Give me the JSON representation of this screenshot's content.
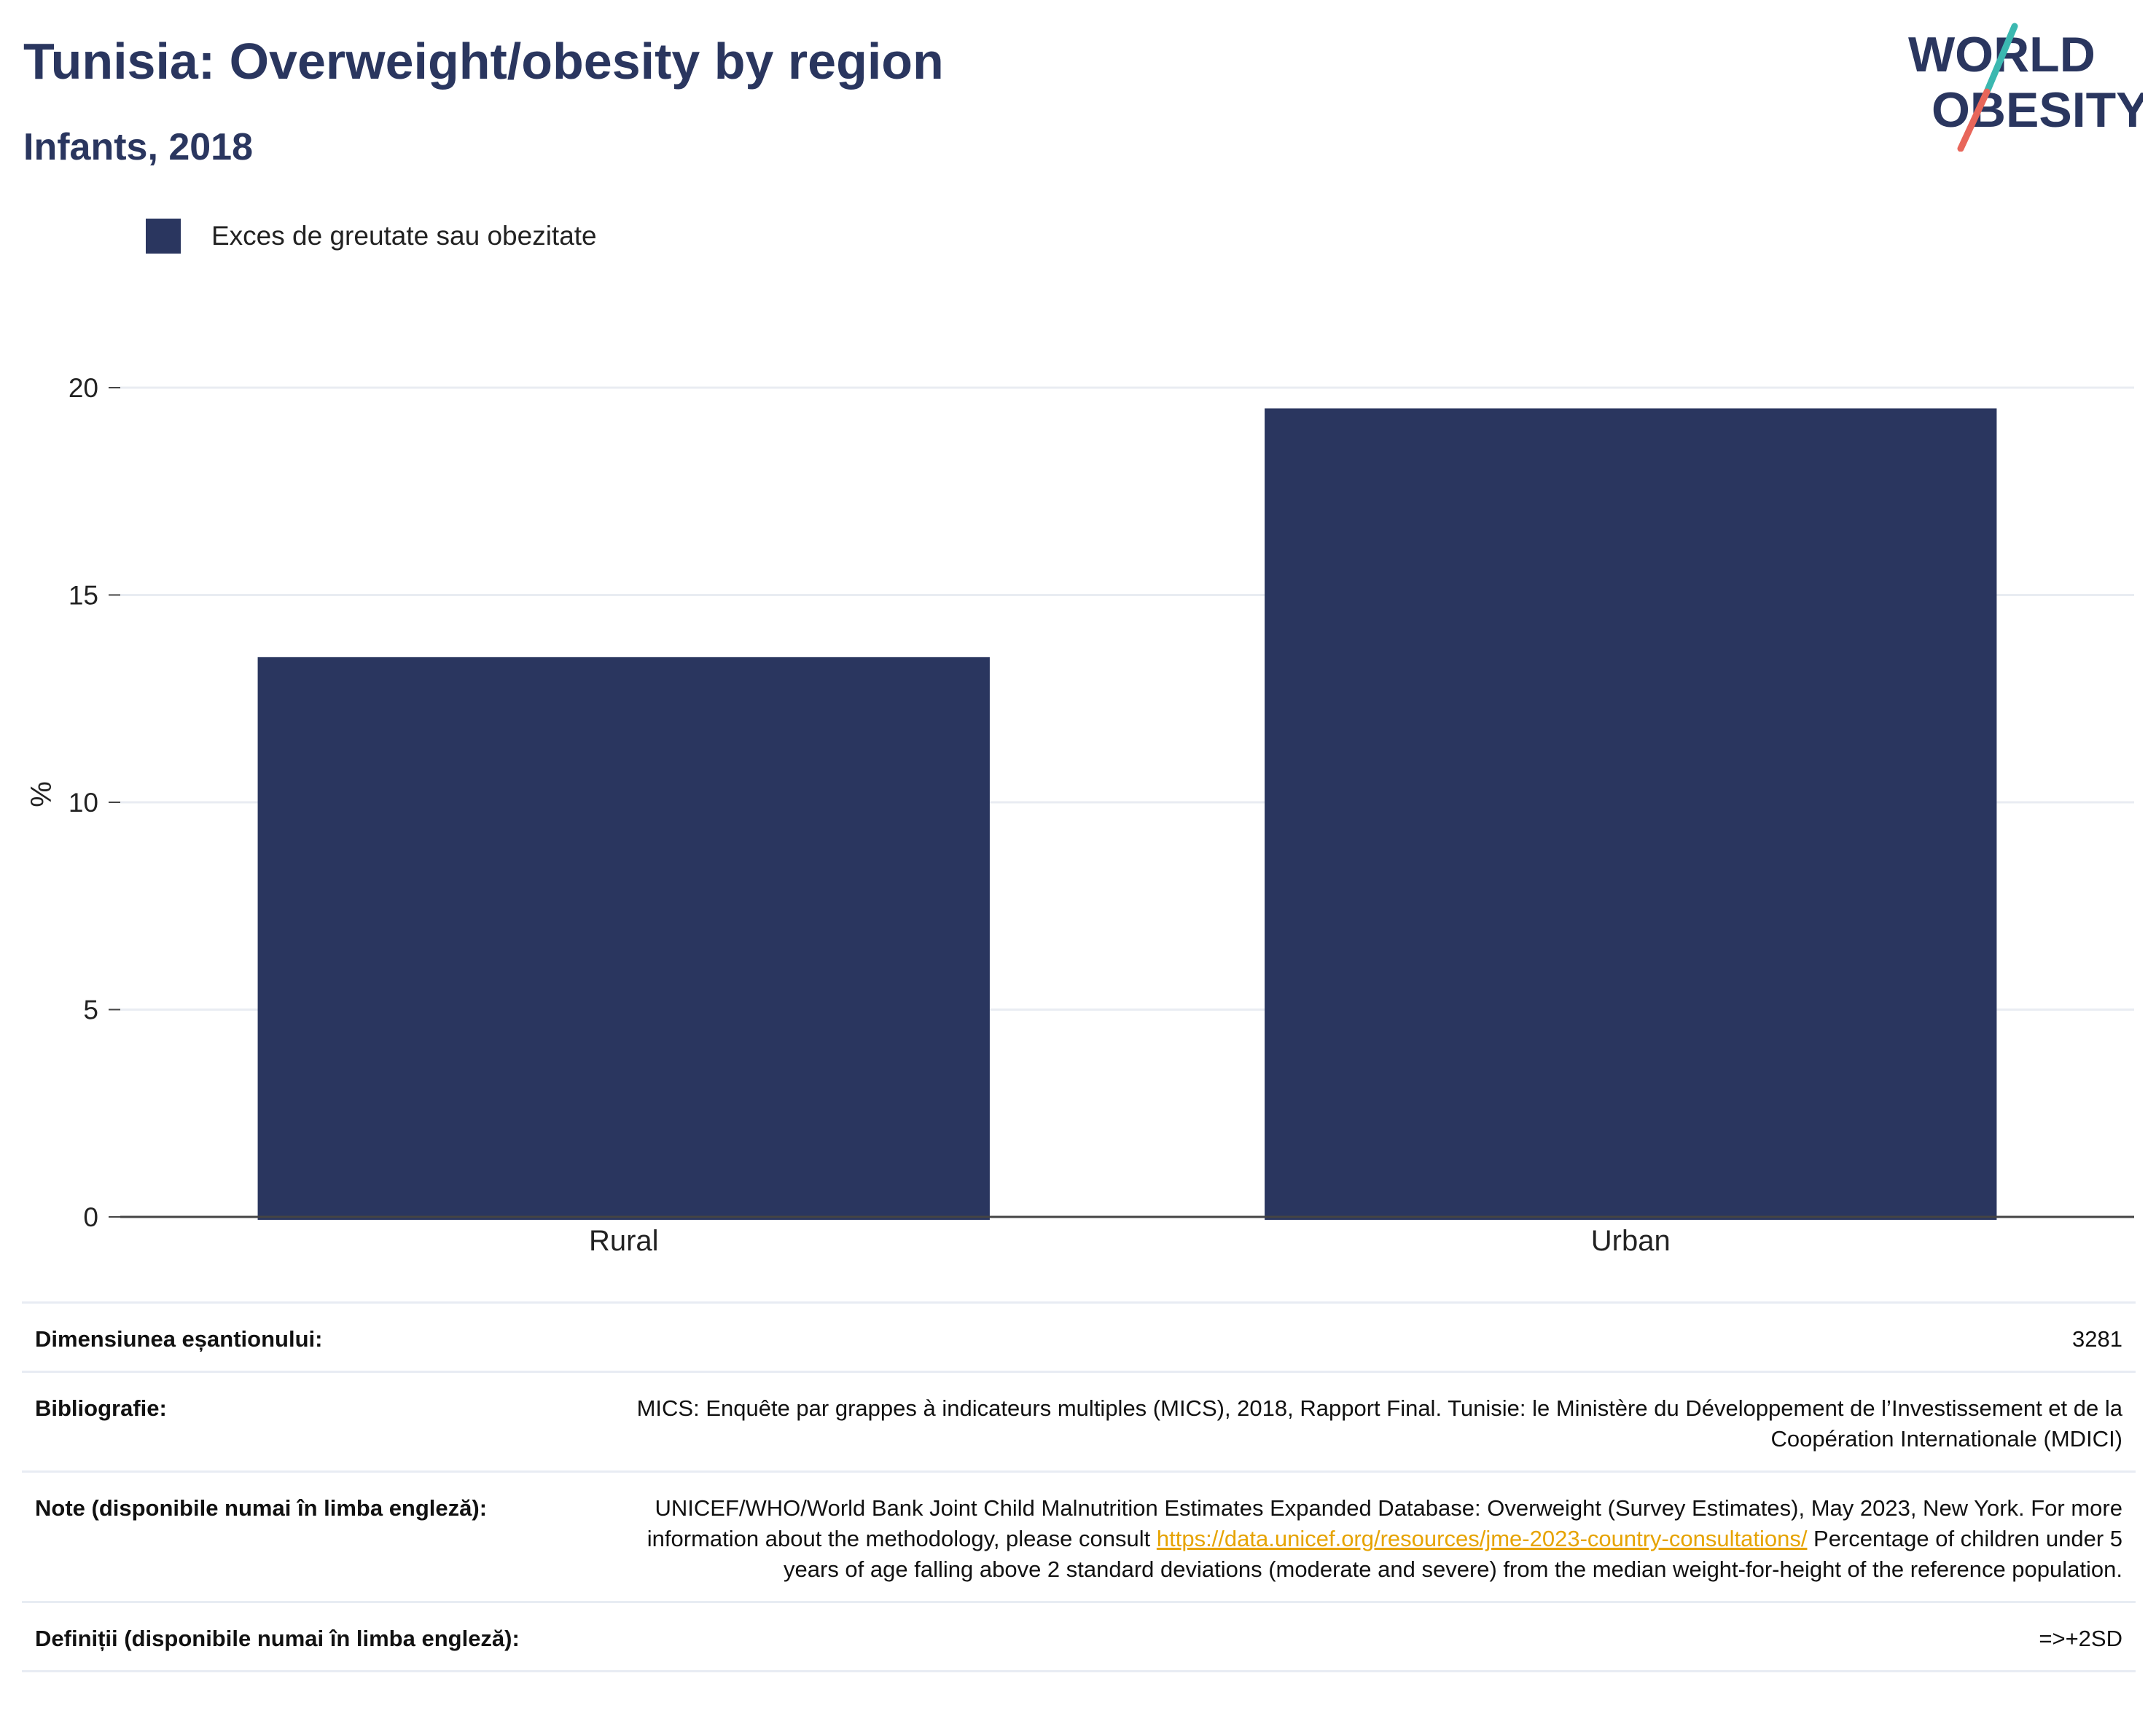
{
  "header": {
    "title": "Tunisia: Overweight/obesity by region",
    "subtitle": "Infants, 2018"
  },
  "logo": {
    "line1": "WORLD",
    "line2": "OBESITY",
    "colors": {
      "text": "#2a365f",
      "slash_top": "#3bb8b0",
      "slash_bottom": "#e8665a"
    }
  },
  "colors": {
    "bar": "#2a365f",
    "grid": "#e9ecf2",
    "axis": "#444444",
    "link": "#e6a300"
  },
  "chart_data": {
    "type": "bar",
    "categories": [
      "Rural",
      "Urban"
    ],
    "series": [
      {
        "name": "Exces de greutate sau obezitate",
        "values": [
          13.5,
          19.5
        ]
      }
    ],
    "ylabel": "%",
    "xlabel": "",
    "ylim": [
      0,
      21.5
    ],
    "yticks": [
      0,
      5,
      10,
      15,
      20
    ],
    "grid": true,
    "legend": "top-left"
  },
  "info": [
    {
      "label": "Dimensiunea eșantionului:",
      "value": "3281"
    },
    {
      "label": "Bibliografie:",
      "value": "MICS: Enquête par grappes à indicateurs multiples (MICS), 2018, Rapport Final. Tunisie: le Ministère du Développement de l’Investissement et de la Coopération Internationale (MDICI)"
    },
    {
      "label": "Note (disponibile numai în limba engleză):",
      "value_before": "UNICEF/WHO/World Bank Joint Child Malnutrition Estimates Expanded Database: Overweight (Survey Estimates), May 2023, New York. For more information about the methodology, please consult ",
      "link": "https://data.unicef.org/resources/jme-2023-country-consultations/",
      "value_after": " Percentage of children under 5 years of age falling above 2 standard deviations (moderate and severe) from the median weight-for-height of the reference population."
    },
    {
      "label": "Definiții (disponibile numai în limba engleză):",
      "value": "=>+2SD"
    }
  ]
}
